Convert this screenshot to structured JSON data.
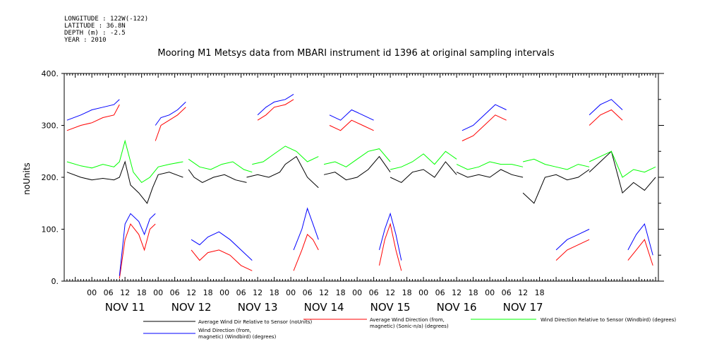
{
  "meta": {
    "longitude": "LONGITUDE : 122W(-122)",
    "latitude": "LATITUDE : 36.8N",
    "depth": "DEPTH (m) : -2.5",
    "year": "YEAR : 2010"
  },
  "chart_data": {
    "type": "line",
    "title": "Mooring M1 Metsys data from MBARI instrument id 1396 at original sampling intervals",
    "ylabel": "noUnits",
    "xlabel": "",
    "ylim": [
      0,
      400
    ],
    "yticks": [
      0,
      100,
      200,
      300,
      400
    ],
    "ytick_labels": [
      "0.",
      "100.",
      "200.",
      "300.",
      "400."
    ],
    "xlim_hours": [
      -10,
      205
    ],
    "hour_ticks": [
      "00",
      "06",
      "12",
      "18",
      "00",
      "06",
      "12",
      "18",
      "00",
      "06",
      "12",
      "18",
      "00",
      "06",
      "12",
      "18",
      "00",
      "06",
      "12",
      "18",
      "00",
      "06",
      "12",
      "18",
      "00",
      "06",
      "12",
      "18"
    ],
    "day_labels": [
      "NOV 11",
      "NOV 12",
      "NOV 13",
      "NOV 14",
      "NOV 15",
      "NOV 16",
      "NOV 17"
    ],
    "grid": false,
    "legend_position": "bottom",
    "series": [
      {
        "name": "Average Wind Dir Relative to Sensor (noUnits)",
        "color": "#000000",
        "segments": [
          {
            "x": [
              -9,
              -4,
              0,
              4,
              8,
              10,
              12,
              14,
              17,
              20,
              22,
              24,
              28,
              33
            ],
            "y": [
              210,
              200,
              195,
              198,
              195,
              200,
              230,
              185,
              170,
              150,
              180,
              205,
              210,
              200
            ]
          },
          {
            "x": [
              35,
              37,
              40,
              44,
              48,
              52,
              56
            ],
            "y": [
              215,
              200,
              190,
              200,
              205,
              195,
              190
            ]
          },
          {
            "x": [
              56,
              60,
              64,
              68,
              70,
              74,
              78,
              82
            ],
            "y": [
              200,
              205,
              200,
              210,
              225,
              240,
              200,
              180
            ]
          },
          {
            "x": [
              84,
              88,
              92,
              96,
              100,
              104,
              108
            ],
            "y": [
              205,
              210,
              195,
              200,
              215,
              240,
              210
            ]
          },
          {
            "x": [
              108,
              112,
              116,
              120,
              124,
              128,
              132
            ],
            "y": [
              200,
              190,
              210,
              215,
              200,
              230,
              205
            ]
          },
          {
            "x": [
              132,
              136,
              140,
              144,
              148,
              152,
              156
            ],
            "y": [
              210,
              200,
              205,
              200,
              215,
              205,
              200
            ]
          },
          {
            "x": [
              156,
              160,
              164,
              168,
              172,
              176,
              180
            ],
            "y": [
              170,
              150,
              200,
              205,
              195,
              200,
              215
            ]
          },
          {
            "x": [
              180,
              184,
              188,
              192,
              196,
              200,
              204
            ],
            "y": [
              210,
              230,
              250,
              170,
              190,
              175,
              200
            ]
          }
        ]
      },
      {
        "name": "Average Wind Direction (from, magnetic) (Sonic-n/a) (degrees)",
        "color": "#ff0000",
        "segments": [
          {
            "x": [
              -9,
              -4,
              0,
              4,
              8,
              10
            ],
            "y": [
              290,
              300,
              305,
              315,
              320,
              340
            ]
          },
          {
            "x": [
              10,
              12,
              14,
              17,
              19,
              21,
              23
            ],
            "y": [
              5,
              80,
              110,
              90,
              60,
              100,
              110
            ]
          },
          {
            "x": [
              23,
              25,
              28,
              31,
              34
            ],
            "y": [
              270,
              300,
              310,
              320,
              335
            ]
          },
          {
            "x": [
              36,
              39,
              42,
              46,
              50,
              54,
              58
            ],
            "y": [
              60,
              40,
              55,
              60,
              50,
              30,
              20
            ]
          },
          {
            "x": [
              60,
              63,
              66,
              70,
              73
            ],
            "y": [
              310,
              320,
              335,
              340,
              350
            ]
          },
          {
            "x": [
              73,
              76,
              78,
              80,
              82
            ],
            "y": [
              20,
              60,
              90,
              80,
              60
            ]
          },
          {
            "x": [
              86,
              90,
              94,
              98,
              102
            ],
            "y": [
              300,
              290,
              310,
              300,
              290
            ]
          },
          {
            "x": [
              104,
              106,
              108,
              110,
              112
            ],
            "y": [
              30,
              80,
              110,
              60,
              20
            ]
          },
          {
            "x": [
              134,
              138,
              142,
              146,
              150
            ],
            "y": [
              270,
              280,
              300,
              320,
              310
            ]
          },
          {
            "x": [
              168,
              172,
              176,
              180
            ],
            "y": [
              40,
              60,
              70,
              80
            ]
          },
          {
            "x": [
              180,
              184,
              188,
              192
            ],
            "y": [
              300,
              320,
              330,
              310
            ]
          },
          {
            "x": [
              194,
              197,
              200,
              203
            ],
            "y": [
              40,
              60,
              80,
              30
            ]
          }
        ]
      },
      {
        "name": "Wind Direction Relative to Sensor (Windbird) (degrees)",
        "color": "#00ff00",
        "segments": [
          {
            "x": [
              -9,
              -4,
              0,
              4,
              8,
              10,
              12,
              15,
              18,
              21,
              24,
              28,
              33
            ],
            "y": [
              230,
              222,
              218,
              225,
              220,
              230,
              270,
              210,
              190,
              200,
              220,
              225,
              230
            ]
          },
          {
            "x": [
              35,
              39,
              43,
              47,
              51,
              55,
              58
            ],
            "y": [
              235,
              220,
              215,
              225,
              230,
              215,
              210
            ]
          },
          {
            "x": [
              58,
              62,
              66,
              70,
              74,
              78,
              82
            ],
            "y": [
              225,
              230,
              245,
              260,
              250,
              230,
              240
            ]
          },
          {
            "x": [
              84,
              88,
              92,
              96,
              100,
              104,
              108
            ],
            "y": [
              225,
              230,
              220,
              235,
              250,
              255,
              230
            ]
          },
          {
            "x": [
              108,
              112,
              116,
              120,
              124,
              128,
              132
            ],
            "y": [
              215,
              220,
              230,
              245,
              225,
              250,
              235
            ]
          },
          {
            "x": [
              132,
              136,
              140,
              144,
              148,
              152,
              156
            ],
            "y": [
              225,
              215,
              220,
              230,
              225,
              225,
              220
            ]
          },
          {
            "x": [
              156,
              160,
              164,
              168,
              172,
              176,
              180
            ],
            "y": [
              230,
              235,
              225,
              220,
              215,
              225,
              220
            ]
          },
          {
            "x": [
              180,
              184,
              188,
              192,
              196,
              200,
              204
            ],
            "y": [
              230,
              240,
              250,
              200,
              215,
              210,
              220
            ]
          }
        ]
      },
      {
        "name": "Wind Direction (from, magnetic) (Windbird) (degrees)",
        "color": "#0000ff",
        "segments": [
          {
            "x": [
              -9,
              -4,
              0,
              4,
              8,
              10
            ],
            "y": [
              310,
              320,
              330,
              335,
              340,
              350
            ]
          },
          {
            "x": [
              10,
              12,
              14,
              17,
              19,
              21,
              23
            ],
            "y": [
              10,
              110,
              130,
              115,
              90,
              120,
              130
            ]
          },
          {
            "x": [
              23,
              25,
              28,
              31,
              34
            ],
            "y": [
              300,
              315,
              320,
              330,
              345
            ]
          },
          {
            "x": [
              36,
              39,
              42,
              46,
              50,
              54,
              58
            ],
            "y": [
              80,
              70,
              85,
              95,
              80,
              60,
              40
            ]
          },
          {
            "x": [
              60,
              63,
              66,
              70,
              73
            ],
            "y": [
              320,
              335,
              345,
              350,
              360
            ]
          },
          {
            "x": [
              73,
              76,
              78,
              80,
              82
            ],
            "y": [
              60,
              100,
              140,
              110,
              80
            ]
          },
          {
            "x": [
              86,
              90,
              94,
              98,
              102
            ],
            "y": [
              320,
              310,
              330,
              320,
              310
            ]
          },
          {
            "x": [
              104,
              106,
              108,
              110,
              112
            ],
            "y": [
              60,
              100,
              130,
              90,
              40
            ]
          },
          {
            "x": [
              134,
              138,
              142,
              146,
              150
            ],
            "y": [
              290,
              300,
              320,
              340,
              330
            ]
          },
          {
            "x": [
              168,
              172,
              176,
              180
            ],
            "y": [
              60,
              80,
              90,
              100
            ]
          },
          {
            "x": [
              180,
              184,
              188,
              192
            ],
            "y": [
              320,
              340,
              350,
              330
            ]
          },
          {
            "x": [
              194,
              197,
              200,
              203
            ],
            "y": [
              60,
              90,
              110,
              50
            ]
          }
        ]
      }
    ]
  },
  "legend": {
    "black": "Average Wind Dir Relative to Sensor (noUnits)",
    "red_line1": "Average Wind Direction (from,",
    "red_line2": "magnetic) (Sonic-n/a) (degrees)",
    "green": "Wind Direction Relative to Sensor (Windbird) (degrees)",
    "blue_line1": "Wind Direction (from,",
    "blue_line2": "magnetic) (Windbird) (degrees)"
  }
}
